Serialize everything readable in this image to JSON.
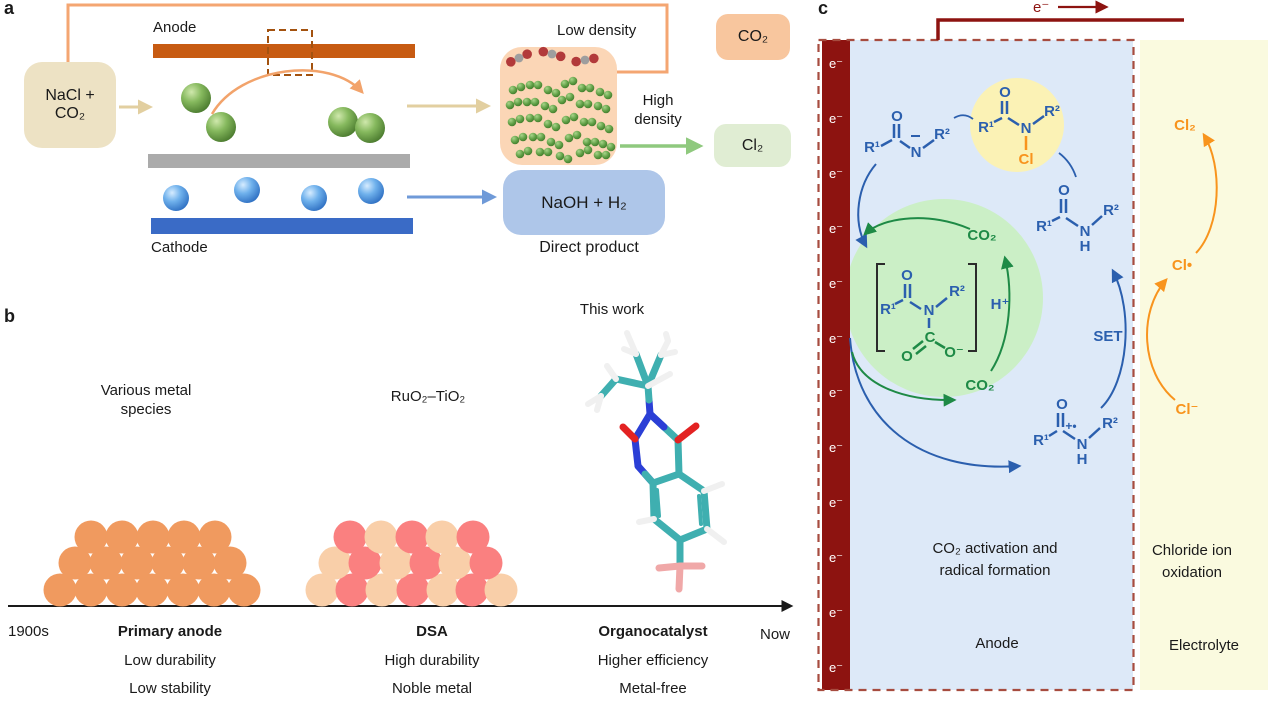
{
  "figure": {
    "panel_a_label": "a",
    "panel_b_label": "b",
    "panel_c_label": "c"
  },
  "panel_a": {
    "anode_label": "Anode",
    "cathode_label": "Cathode",
    "feed_line1": "NaCl +",
    "feed_line2": "CO₂",
    "low_density_label": "Low density",
    "high_density_line1": "High",
    "high_density_line2": "density",
    "co2_product": "CO₂",
    "cl2_product": "Cl₂",
    "naoh_product": "NaOH + H₂",
    "direct_product_label": "Direct product"
  },
  "panel_b": {
    "timeline_start": "1900s",
    "timeline_end": "Now",
    "this_work_label": "This work",
    "eras": [
      {
        "material_line1": "Various metal",
        "material_line2": "species",
        "name": "Primary anode",
        "trait1": "Low durability",
        "trait2": "Low stability"
      },
      {
        "material_line1": "RuO₂–TiO₂",
        "material_line2": "",
        "name": "DSA",
        "trait1": "High durability",
        "trait2": "Noble metal"
      },
      {
        "material_line1": "",
        "material_line2": "",
        "name": "Organocatalyst",
        "trait1": "Higher efficiency",
        "trait2": "Metal-free"
      }
    ]
  },
  "panel_c": {
    "electron": "e⁻",
    "electron_count": 12,
    "wire_electron": "e⁻",
    "cl2": "Cl₂",
    "cl_radical": "Cl•",
    "cl_anion": "Cl⁻",
    "co2_top": "CO₂",
    "co2_bottom": "CO₂",
    "set_label": "SET",
    "h_plus": "H⁺",
    "amide_anion": {
      "r1": "R¹",
      "o": "O",
      "n": "N",
      "minus": "−",
      "r2": "R²"
    },
    "n_chloroamide": {
      "r1": "R¹",
      "o": "O",
      "n": "N",
      "cl": "Cl",
      "r2": "R²"
    },
    "amide": {
      "r1": "R¹",
      "o": "O",
      "n": "N",
      "h": "H",
      "r2": "R²"
    },
    "radical_cation": {
      "r1": "R¹",
      "o": "O",
      "n": "N",
      "h": "H",
      "plus_radical": "+•",
      "r2": "R²"
    },
    "carbamate": {
      "r1": "R¹",
      "o": "O",
      "n": "N",
      "r2": "R²",
      "c": "C",
      "o_double": "O",
      "o_minus": "O⁻"
    },
    "zone1_line1": "CO₂ activation and",
    "zone1_line2": "radical formation",
    "zone1_name": "Anode",
    "zone2_line1": "Chloride ion",
    "zone2_line2": "oxidation",
    "zone2_name": "Electrolyte"
  },
  "colors": {
    "electrode_dark_red": "#8D1310",
    "dashed_border_red": "#A74C3F",
    "mechanism_blue": "#2B5FAE",
    "mechanism_green": "#1E8A46",
    "chlorine_orange": "#F8941D",
    "anode_bar_orange": "#C75B12",
    "cathode_bar_blue": "#3A6BC6",
    "wire_light_orange": "#F4A672",
    "anode_region_blue": "#DDE9F8",
    "electrolyte_region_yellow": "#FAFADF",
    "highlight_yellow_circle": "#FBF2B5",
    "highlight_green_circle": "#CBEFC6",
    "primary_anode_circle": "#F09A5F",
    "dsa_pink": "#FA8080",
    "dsa_peach": "#F9CFA9"
  }
}
